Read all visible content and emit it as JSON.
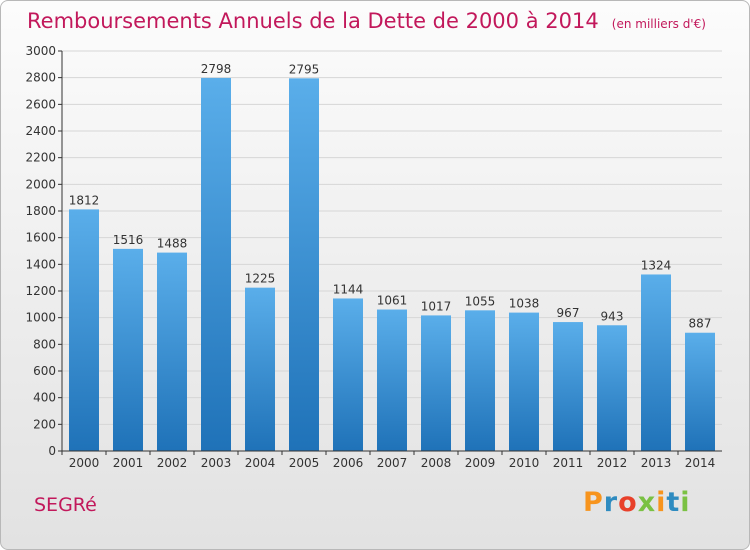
{
  "header": {
    "title": "Remboursements Annuels de la Dette de 2000 à 2014",
    "unit": "(en milliers d'€)"
  },
  "footer": {
    "commune": "SEGRé",
    "logo": "Proxiti",
    "logo_colors": [
      "#f7941d",
      "#2e8bc0",
      "#e8402a",
      "#7ac143",
      "#f7941d",
      "#2e8bc0",
      "#7ac143"
    ]
  },
  "colors": {
    "title": "#c2185b",
    "bar_light": "#5aaeea",
    "bar_dark": "#1f72b8",
    "grid": "#d6d6d6",
    "axis": "#333333"
  },
  "chart_data": {
    "type": "bar",
    "title": "Remboursements Annuels de la Dette de 2000 à 2014",
    "categories": [
      "2000",
      "2001",
      "2002",
      "2003",
      "2004",
      "2005",
      "2006",
      "2007",
      "2008",
      "2009",
      "2010",
      "2011",
      "2012",
      "2013",
      "2014"
    ],
    "values": [
      1812,
      1516,
      1488,
      2798,
      1225,
      2795,
      1144,
      1061,
      1017,
      1055,
      1038,
      967,
      943,
      1324,
      887
    ],
    "ylim": [
      0,
      3000
    ],
    "ytick_step": 200,
    "grid": true,
    "xlabel": "",
    "ylabel": ""
  }
}
